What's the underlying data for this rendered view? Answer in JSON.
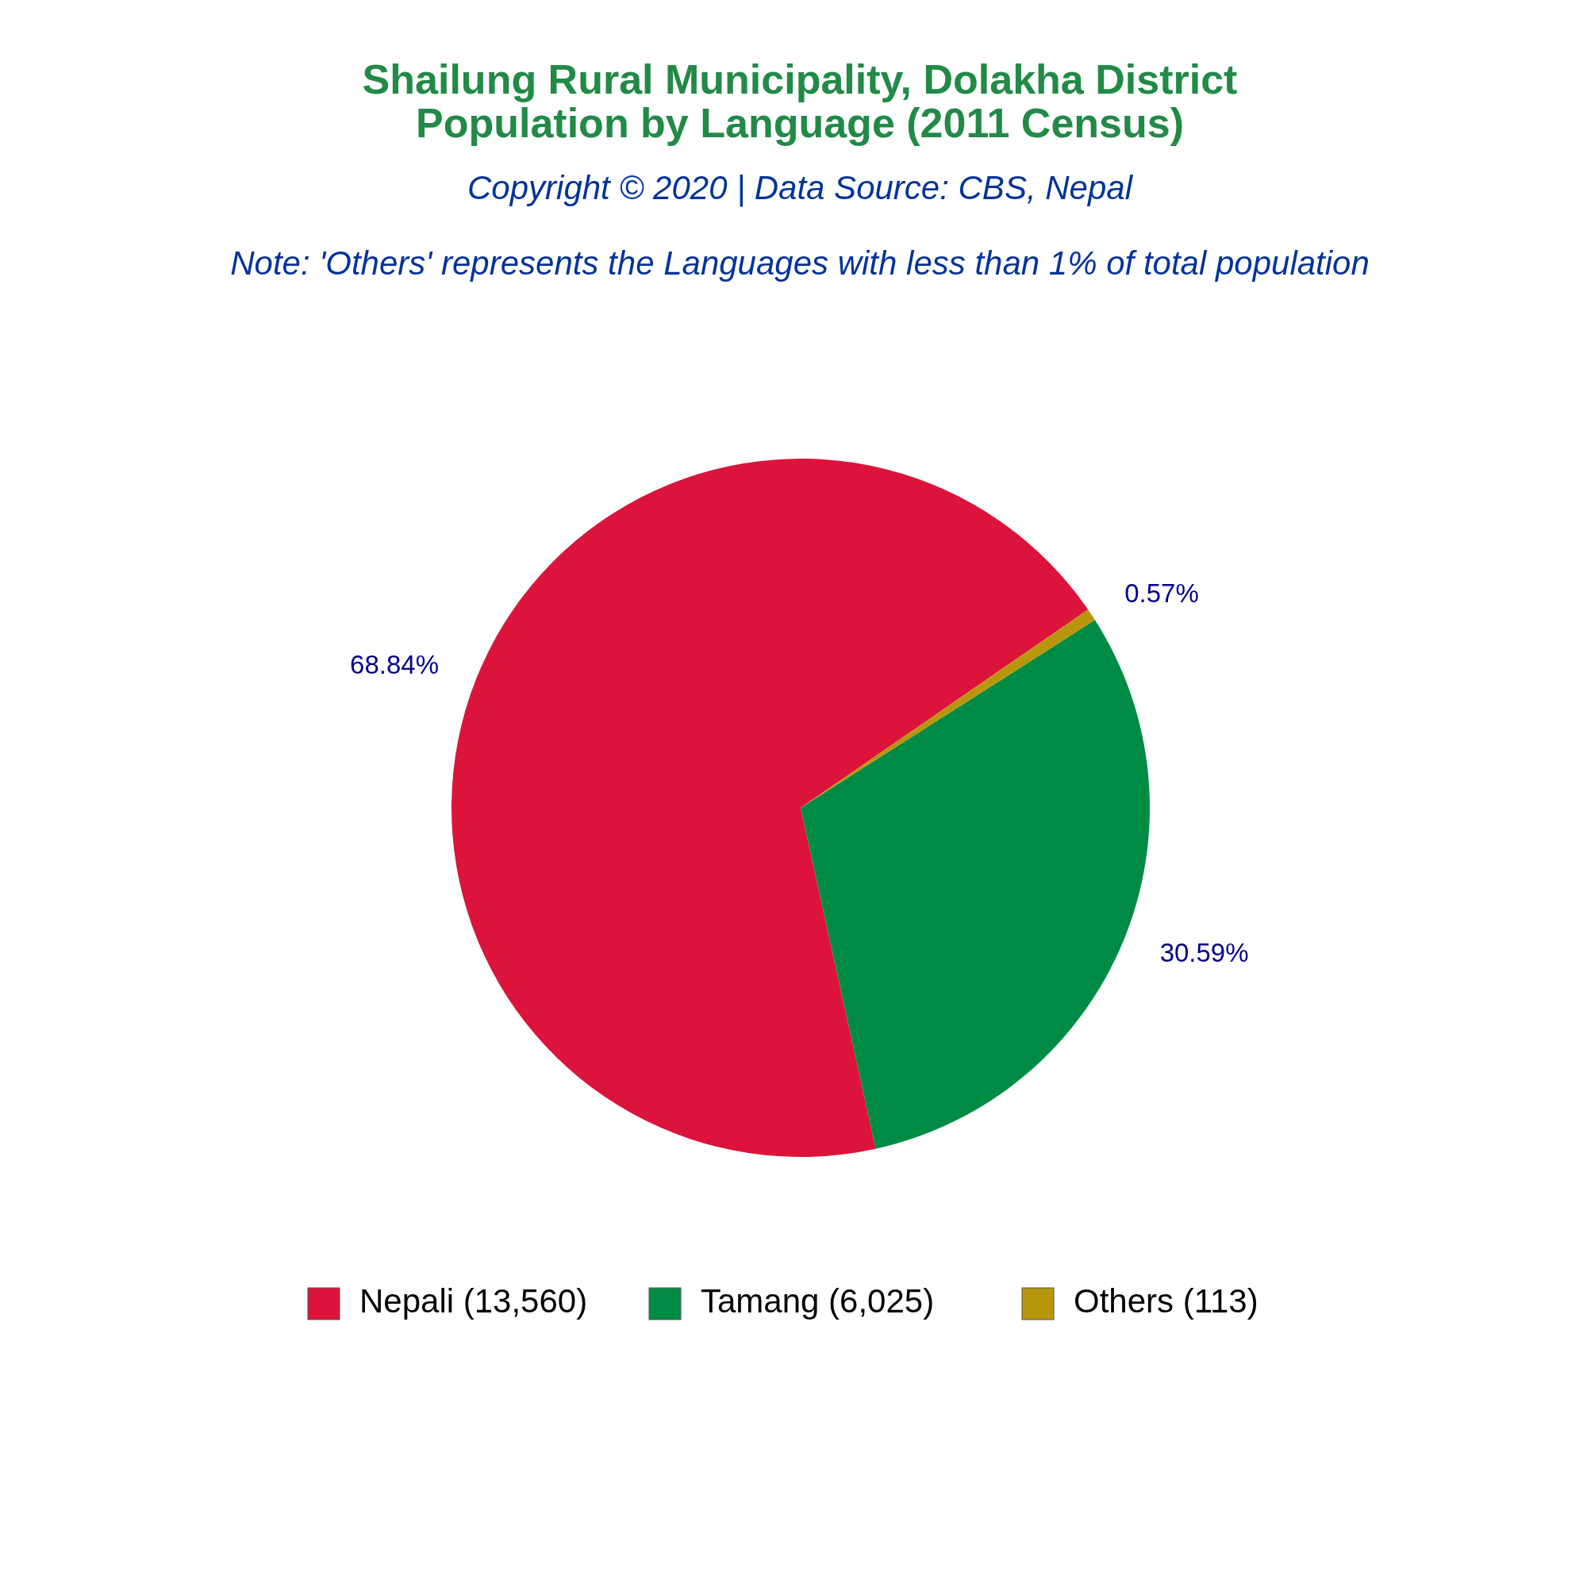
{
  "chart_data": {
    "type": "pie",
    "title": "Shailung Rural Municipality, Dolakha District\nPopulation by Language (2011 Census)",
    "subtitle": "Copyright © 2020 | Data Source: CBS, Nepal",
    "annotations": [
      "Note: 'Others' represents the Languages with less than 1% of total population"
    ],
    "categories": [
      "Nepali (13,560)",
      "Tamang (6,025)",
      "Others (113)"
    ],
    "values": [
      68.84,
      30.59,
      0.57
    ],
    "value_labels": [
      "68.84%",
      "30.59%",
      "0.57%"
    ],
    "colors": [
      "#dc143c",
      "#008b45",
      "#b8960c"
    ],
    "legend": "bottom"
  }
}
